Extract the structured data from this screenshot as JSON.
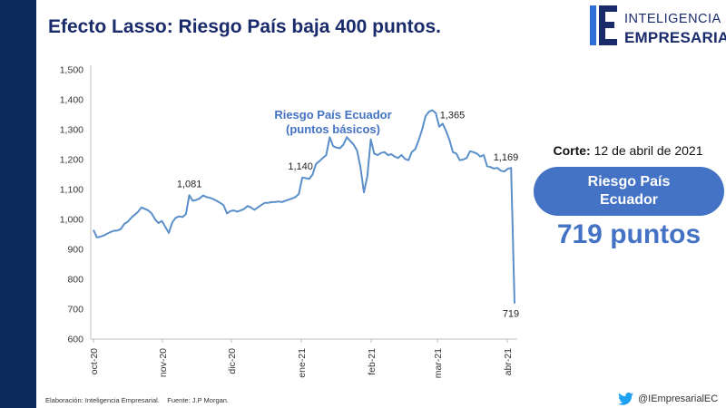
{
  "title": "Efecto Lasso: Riesgo País baja 400 puntos.",
  "logo": {
    "line1": "INTELIGENCIA",
    "line2": "EMPRESARIAL",
    "accent_color": "#2e6fd6",
    "dark_color": "#1a2b6b"
  },
  "side_panel": {
    "corte_label": "Corte:",
    "corte_date": "12 de abril de 2021",
    "pill_text": "Riesgo País Ecuador",
    "big_value": "719 puntos",
    "pill_color": "#4472c4"
  },
  "footer": {
    "source": "Elaboración: Inteligencia Empresarial.    Fuente: J.P Morgan.",
    "twitter_handle": "@IEmpresarialEC",
    "twitter_icon": "twitter-bird-icon"
  },
  "chart_data": {
    "type": "line",
    "series": [
      {
        "name": "Riesgo País Ecuador (puntos básicos)",
        "color": "#5b8fc9",
        "values": [
          965,
          940,
          942,
          946,
          952,
          958,
          962,
          963,
          968,
          985,
          992,
          1005,
          1015,
          1025,
          1040,
          1035,
          1030,
          1020,
          1000,
          988,
          995,
          975,
          955,
          990,
          1005,
          1010,
          1008,
          1018,
          1081,
          1062,
          1065,
          1070,
          1080,
          1075,
          1072,
          1068,
          1062,
          1055,
          1048,
          1020,
          1028,
          1030,
          1026,
          1030,
          1035,
          1045,
          1040,
          1032,
          1040,
          1048,
          1055,
          1055,
          1058,
          1058,
          1060,
          1058,
          1062,
          1066,
          1070,
          1075,
          1085,
          1140,
          1138,
          1135,
          1150,
          1185,
          1195,
          1205,
          1215,
          1275,
          1245,
          1240,
          1238,
          1250,
          1275,
          1262,
          1250,
          1230,
          1175,
          1090,
          1145,
          1268,
          1220,
          1215,
          1222,
          1225,
          1215,
          1218,
          1210,
          1205,
          1215,
          1202,
          1198,
          1225,
          1235,
          1265,
          1300,
          1345,
          1360,
          1365,
          1355,
          1310,
          1320,
          1295,
          1265,
          1225,
          1220,
          1198,
          1200,
          1205,
          1228,
          1225,
          1220,
          1210,
          1215,
          1178,
          1175,
          1170,
          1172,
          1163,
          1160,
          1169,
          1172,
          719
        ]
      }
    ],
    "annotations": [
      {
        "label": "1,081",
        "index": 28
      },
      {
        "label": "1,140",
        "index": 61
      },
      {
        "label": "1,365",
        "index": 99
      },
      {
        "label": "1,169",
        "index": 121
      },
      {
        "label": "719",
        "index": 123
      }
    ],
    "series_label_lines": [
      "Riesgo País Ecuador",
      "(puntos básicos)"
    ],
    "x_ticks": [
      "oct-20",
      "nov-20",
      "dic-20",
      "ene-21",
      "feb-21",
      "mar-21",
      "abr-21"
    ],
    "y_ticks": [
      "1,500",
      "1,400",
      "1,300",
      "1,200",
      "1,100",
      "1,000",
      "900",
      "800",
      "700",
      "600"
    ],
    "ylim": [
      600,
      1500
    ],
    "grid": false,
    "xlabel": "",
    "ylabel": ""
  }
}
